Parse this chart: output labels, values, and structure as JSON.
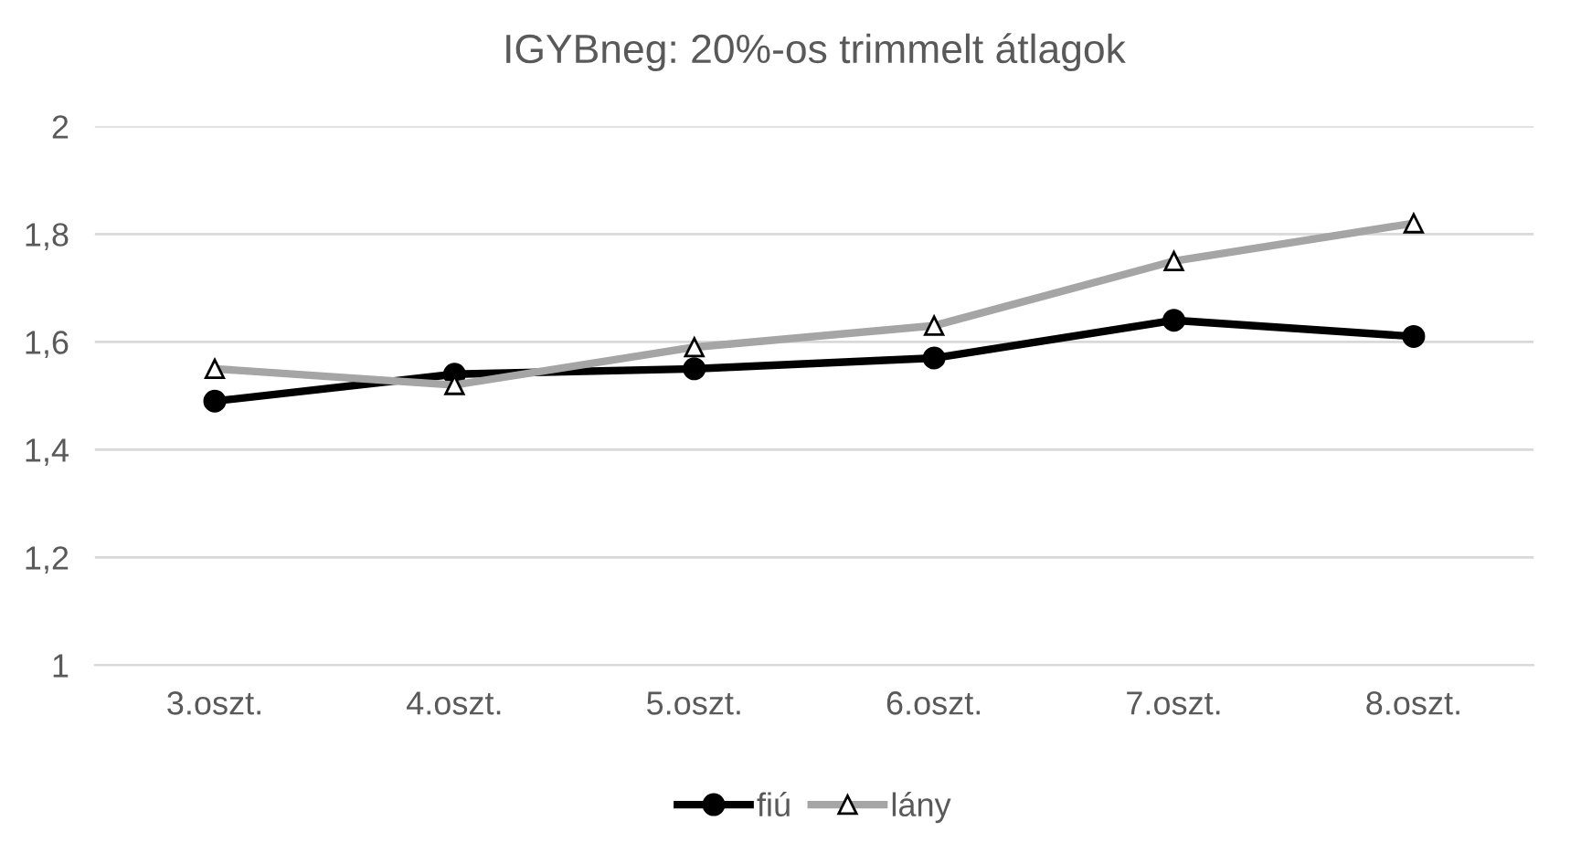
{
  "chart_data": {
    "type": "line",
    "title": "IGYBneg: 20%-os trimmelt átlagok",
    "categories": [
      "3.oszt.",
      "4.oszt.",
      "5.oszt.",
      "6.oszt.",
      "7.oszt.",
      "8.oszt."
    ],
    "series": [
      {
        "name": "fiú",
        "color": "#000000",
        "marker": "circle",
        "values": [
          1.49,
          1.54,
          1.55,
          1.57,
          1.64,
          1.61
        ]
      },
      {
        "name": "lány",
        "color": "#a5a5a5",
        "marker": "triangle",
        "values": [
          1.55,
          1.52,
          1.59,
          1.63,
          1.75,
          1.82
        ]
      }
    ],
    "ylim": [
      1,
      2
    ],
    "yticks": [
      {
        "value": 1,
        "label": "1"
      },
      {
        "value": 1.2,
        "label": "1,2"
      },
      {
        "value": 1.4,
        "label": "1,4"
      },
      {
        "value": 1.6,
        "label": "1,6"
      },
      {
        "value": 1.8,
        "label": "1,8"
      },
      {
        "value": 2,
        "label": "2"
      }
    ],
    "grid": "y",
    "legend": "bottom"
  }
}
